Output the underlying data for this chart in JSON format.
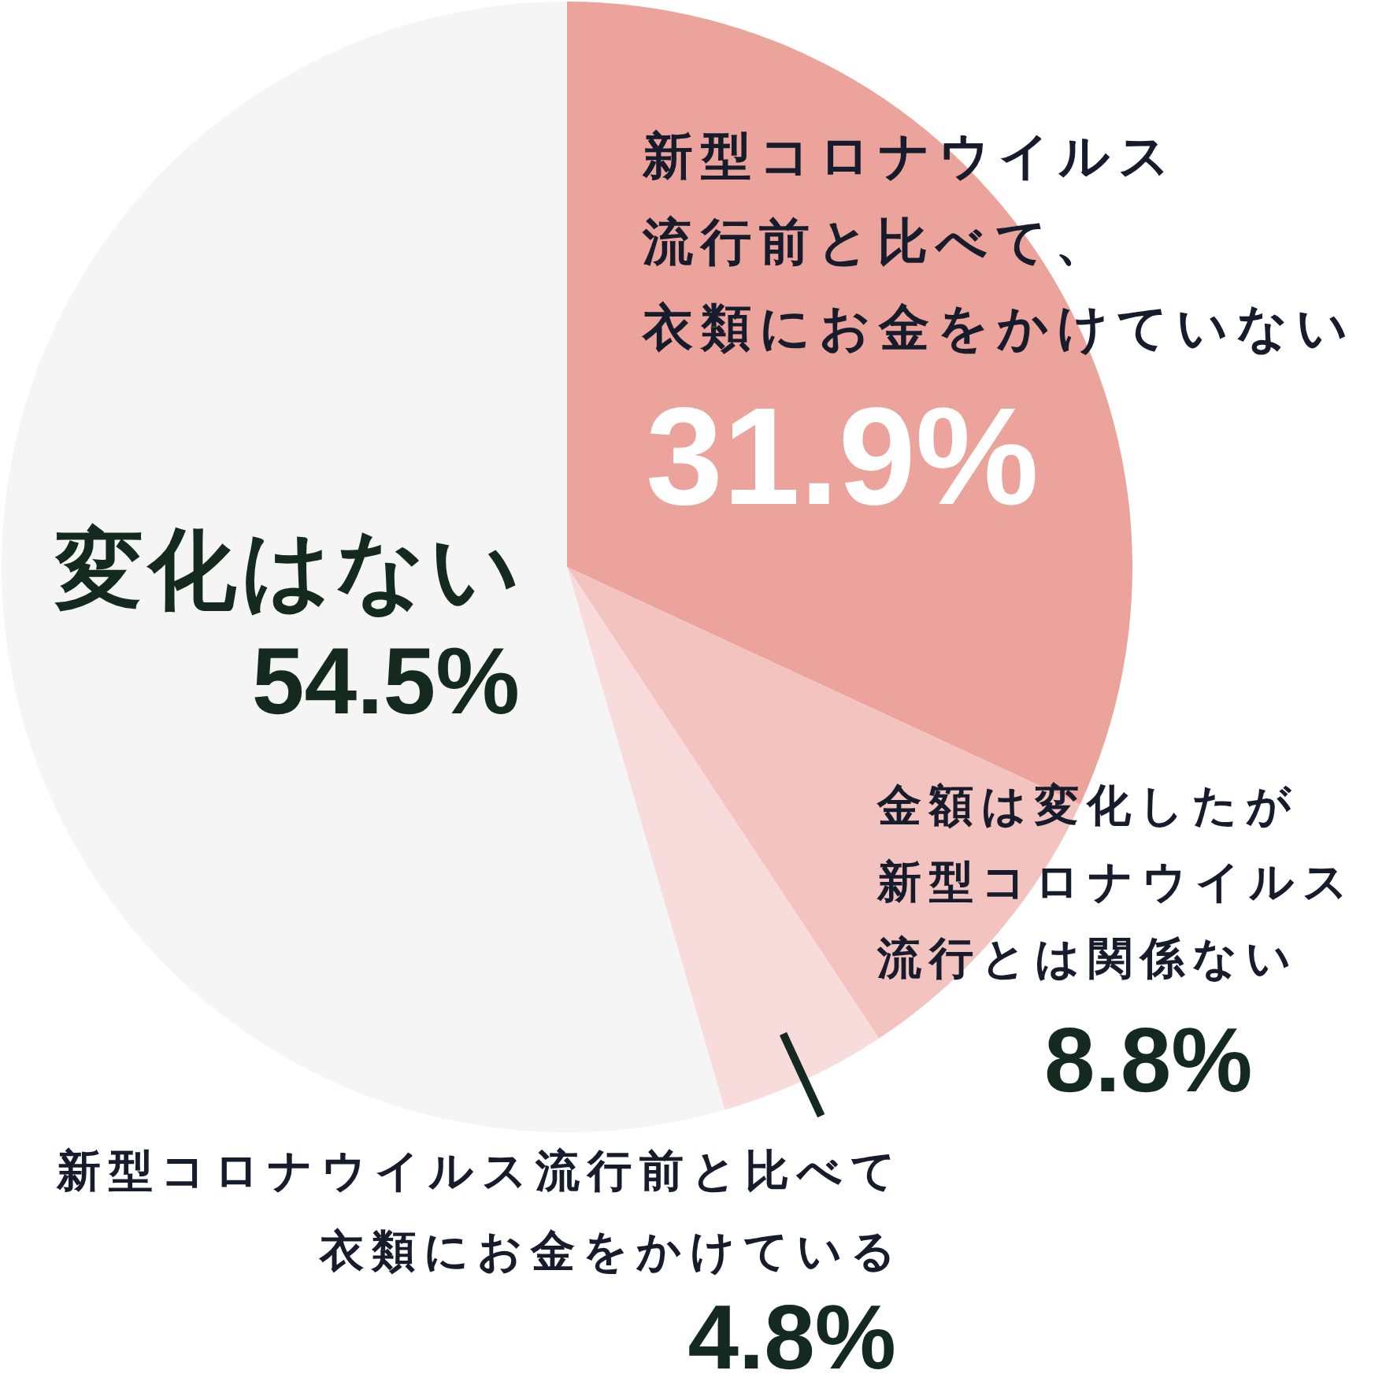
{
  "chart_data": {
    "type": "pie",
    "categories": [
      "新型コロナウイルス流行前と比べて、衣類にお金をかけていない",
      "金額は変化したが新型コロナウイルス流行とは関係ない",
      "新型コロナウイルス流行前と比べて衣類にお金をかけている",
      "変化はない"
    ],
    "values": [
      31.9,
      8.8,
      4.8,
      54.5
    ],
    "colors": [
      "#eba39b",
      "#f2c3bf",
      "#f8dcdc",
      "#f5f5f5"
    ],
    "value_labels": [
      "31.9%",
      "8.8%",
      "4.8%",
      "54.5%"
    ]
  }
}
